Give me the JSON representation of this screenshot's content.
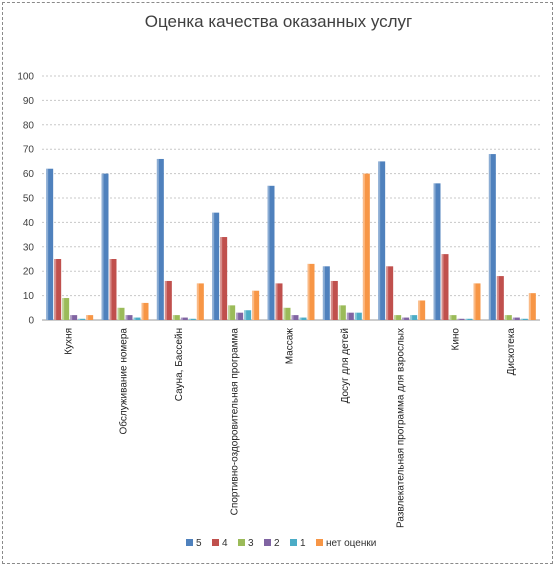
{
  "chart_data": {
    "type": "bar",
    "title": "Оценка качества оказанных услуг",
    "xlabel": "",
    "ylabel": "",
    "ylim": [
      0,
      100
    ],
    "yticks": [
      0,
      10,
      20,
      30,
      40,
      50,
      60,
      70,
      80,
      90,
      100
    ],
    "grid": true,
    "legend_position": "bottom",
    "categories": [
      "Кухня",
      "Обслуживаниe номера",
      "Сауна, Бассейн",
      "Спортивно-оздоровительная программа",
      "Массаж",
      "Досуг для детей",
      "Развлекательная программа для взрослых",
      "Кино",
      "Дискотека"
    ],
    "series": [
      {
        "name": "5",
        "color": "#4F81BD",
        "values": [
          62,
          60,
          66,
          44,
          55,
          22,
          65,
          56,
          68
        ]
      },
      {
        "name": "4",
        "color": "#C0504D",
        "values": [
          25,
          25,
          16,
          34,
          15,
          16,
          22,
          27,
          18
        ]
      },
      {
        "name": "3",
        "color": "#9BBB59",
        "values": [
          9,
          5,
          2,
          6,
          5,
          6,
          2,
          2,
          2
        ]
      },
      {
        "name": "2",
        "color": "#8064A2",
        "values": [
          2,
          2,
          1,
          3,
          2,
          3,
          1,
          0.5,
          1
        ]
      },
      {
        "name": "1",
        "color": "#4BACC6",
        "values": [
          0.5,
          1,
          0.5,
          4,
          1,
          3,
          2,
          0.5,
          0.5
        ]
      },
      {
        "name": "нет оценки",
        "color": "#F79646",
        "values": [
          2,
          7,
          15,
          12,
          23,
          60,
          8,
          15,
          11
        ]
      }
    ]
  }
}
